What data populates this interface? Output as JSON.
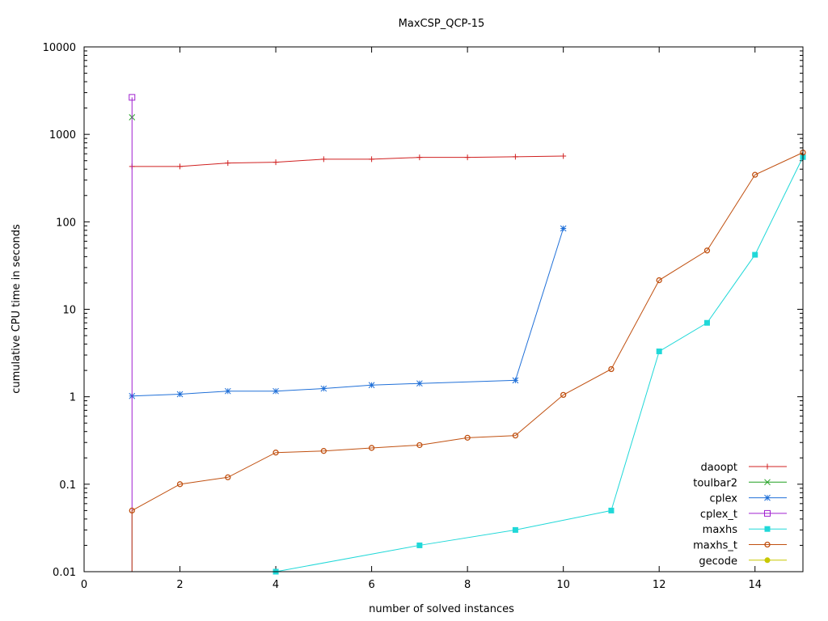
{
  "chart_data": {
    "type": "line",
    "title": "MaxCSP_QCP-15",
    "xlabel": "number of solved instances",
    "ylabel": "cumulative CPU time in seconds",
    "xlim": [
      0,
      15
    ],
    "ylim": [
      0.01,
      10000
    ],
    "yscale": "log",
    "xticks": [
      0,
      2,
      4,
      6,
      8,
      10,
      12,
      14
    ],
    "yticks": [
      0.01,
      0.1,
      1,
      10,
      100,
      1000,
      10000
    ],
    "ytick_labels": [
      "0.01",
      "0.1",
      "1",
      "10",
      "100",
      "1000",
      "10000"
    ],
    "grid": false,
    "legend_position": "bottom-right",
    "series": [
      {
        "name": "daoopt",
        "color": "#d02020",
        "marker": "plus",
        "points": [
          [
            1,
            430
          ],
          [
            2,
            430
          ],
          [
            3,
            470
          ],
          [
            4,
            480
          ],
          [
            5,
            520
          ],
          [
            6,
            520
          ],
          [
            7,
            545
          ],
          [
            8,
            545
          ],
          [
            9,
            555
          ],
          [
            10,
            565
          ]
        ]
      },
      {
        "name": "toulbar2",
        "color": "#20a020",
        "marker": "cross",
        "points": [
          [
            1,
            1570
          ]
        ]
      },
      {
        "name": "cplex",
        "color": "#2070d8",
        "marker": "star",
        "points": [
          [
            1,
            1.02
          ],
          [
            2,
            1.07
          ],
          [
            3,
            1.16
          ],
          [
            4,
            1.16
          ],
          [
            5,
            1.24
          ],
          [
            6,
            1.36
          ],
          [
            7,
            1.42
          ],
          [
            9,
            1.54
          ],
          [
            10,
            84
          ]
        ]
      },
      {
        "name": "cplex_t",
        "color": "#a020d0",
        "marker": "open-square",
        "points": [
          [
            1,
            0.001
          ],
          [
            1,
            2650
          ]
        ]
      },
      {
        "name": "maxhs",
        "color": "#20d8d8",
        "marker": "filled-square",
        "points": [
          [
            4,
            0.01
          ],
          [
            7,
            0.02
          ],
          [
            9,
            0.03
          ],
          [
            11,
            0.05
          ],
          [
            12,
            3.3
          ],
          [
            13,
            7
          ],
          [
            14,
            42
          ],
          [
            15,
            550
          ]
        ]
      },
      {
        "name": "maxhs_t",
        "color": "#c05010",
        "marker": "open-circle",
        "points": [
          [
            1,
            0.001
          ],
          [
            1,
            0.05
          ],
          [
            2,
            0.1
          ],
          [
            3,
            0.12
          ],
          [
            4,
            0.23
          ],
          [
            5,
            0.24
          ],
          [
            6,
            0.26
          ],
          [
            7,
            0.28
          ],
          [
            8,
            0.34
          ],
          [
            9,
            0.36
          ],
          [
            10,
            1.05
          ],
          [
            11,
            2.07
          ],
          [
            12,
            21.5
          ],
          [
            13,
            47
          ],
          [
            14,
            345
          ],
          [
            15,
            620
          ]
        ]
      },
      {
        "name": "gecode",
        "color": "#c8c800",
        "marker": "filled-circle",
        "points": []
      }
    ]
  }
}
